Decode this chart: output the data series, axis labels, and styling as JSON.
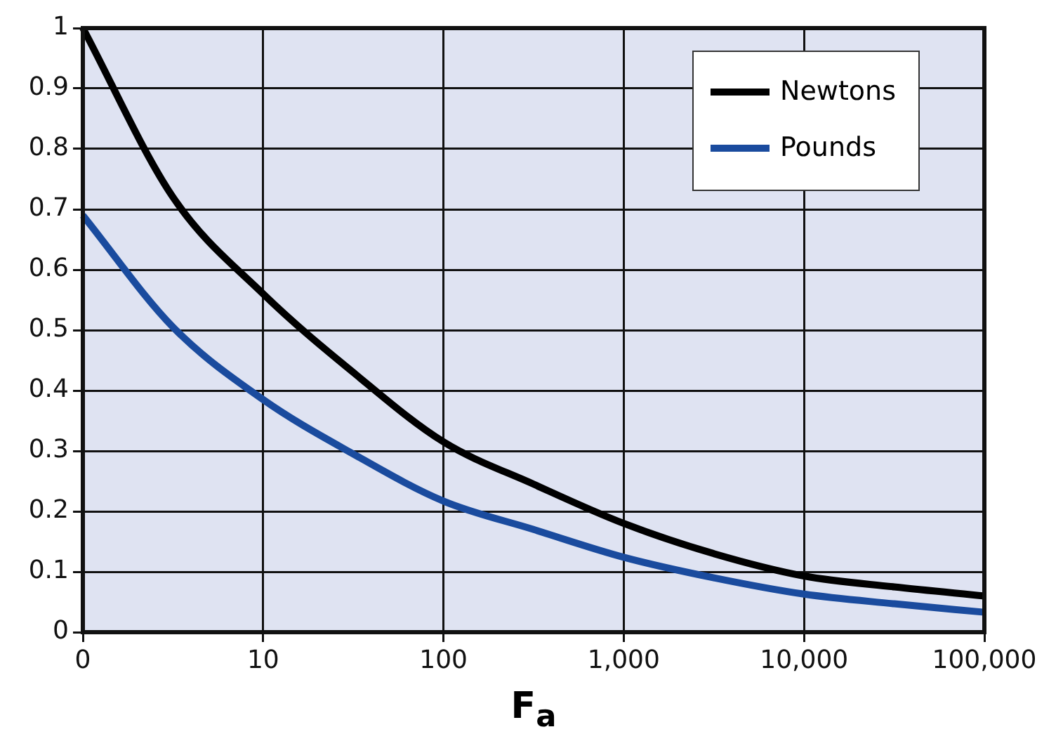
{
  "chart_data": {
    "type": "line",
    "xlabel": "F$_{a}$",
    "categories": [
      "0",
      null,
      "10",
      null,
      "100",
      null,
      "1,000",
      null,
      "10,000",
      null,
      "100,000"
    ],
    "series": [
      {
        "name": "Newtons",
        "color": "#000000",
        "values": [
          1.0,
          0.72,
          0.56,
          0.43,
          0.315,
          0.245,
          0.18,
          0.13,
          0.093,
          0.075,
          0.06
        ]
      },
      {
        "name": "Pounds",
        "color": "#1a4b9e",
        "values": [
          0.69,
          0.505,
          0.385,
          0.295,
          0.217,
          0.17,
          0.124,
          0.09,
          0.063,
          0.047,
          0.033
        ]
      }
    ],
    "ylim": [
      0,
      1
    ],
    "yticks": [
      0,
      0.1,
      0.2,
      0.3,
      0.4,
      0.5,
      0.6,
      0.7,
      0.8,
      0.9,
      1
    ],
    "grid": true,
    "legend": "top right",
    "marker": "none",
    "line_style": "solid"
  }
}
